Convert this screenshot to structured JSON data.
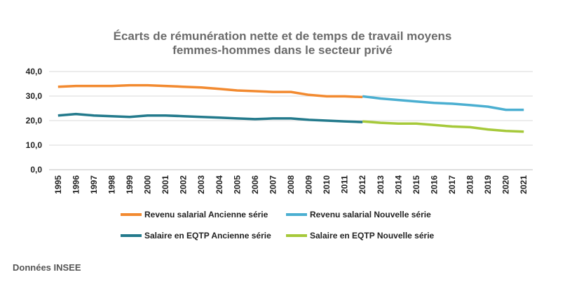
{
  "chart_data": {
    "type": "line",
    "title_lines": [
      "Écarts de rémunération nette et de temps de travail moyens",
      "femmes-hommes dans le secteur privé"
    ],
    "x": [
      "1995",
      "1996",
      "1997",
      "1998",
      "1999",
      "2000",
      "2001",
      "2002",
      "2003",
      "2004",
      "2005",
      "2006",
      "2007",
      "2008",
      "2009",
      "2010",
      "2011",
      "2012",
      "2013",
      "2014",
      "2015",
      "2016",
      "2017",
      "2018",
      "2019",
      "2020",
      "2021"
    ],
    "ylim": [
      0,
      40
    ],
    "yticks": [
      "0,0",
      "10,0",
      "20,0",
      "30,0",
      "40,0"
    ],
    "ytick_values": [
      0,
      10,
      20,
      30,
      40
    ],
    "grid": true,
    "legend_position": "bottom",
    "series": [
      {
        "name": "Revenu salarial Ancienne série",
        "color": "#F28A30",
        "values": [
          33.8,
          34.1,
          34.1,
          34.1,
          34.4,
          34.4,
          34.1,
          33.8,
          33.5,
          32.9,
          32.3,
          32.0,
          31.7,
          31.7,
          30.5,
          29.9,
          29.9,
          29.6,
          null,
          null,
          null,
          null,
          null,
          null,
          null,
          null,
          null
        ]
      },
      {
        "name": "Revenu salarial Nouvelle série",
        "color": "#4BAFD1",
        "values": [
          null,
          null,
          null,
          null,
          null,
          null,
          null,
          null,
          null,
          null,
          null,
          null,
          null,
          null,
          null,
          null,
          null,
          29.9,
          29.0,
          28.4,
          27.8,
          27.2,
          26.9,
          26.3,
          25.7,
          24.4,
          24.4
        ]
      },
      {
        "name": "Salaire en EQTP Ancienne série",
        "color": "#237A8C",
        "values": [
          22.1,
          22.7,
          22.1,
          21.8,
          21.5,
          22.1,
          22.1,
          21.8,
          21.5,
          21.2,
          20.9,
          20.6,
          20.9,
          20.9,
          20.3,
          20.0,
          19.7,
          19.4,
          null,
          null,
          null,
          null,
          null,
          null,
          null,
          null,
          null
        ]
      },
      {
        "name": "Salaire en EQTP Nouvelle série",
        "color": "#A6C93A",
        "values": [
          null,
          null,
          null,
          null,
          null,
          null,
          null,
          null,
          null,
          null,
          null,
          null,
          null,
          null,
          null,
          null,
          null,
          19.7,
          19.1,
          18.8,
          18.8,
          18.2,
          17.6,
          17.3,
          16.4,
          15.8,
          15.5
        ]
      }
    ]
  },
  "source_text": "Données INSEE"
}
